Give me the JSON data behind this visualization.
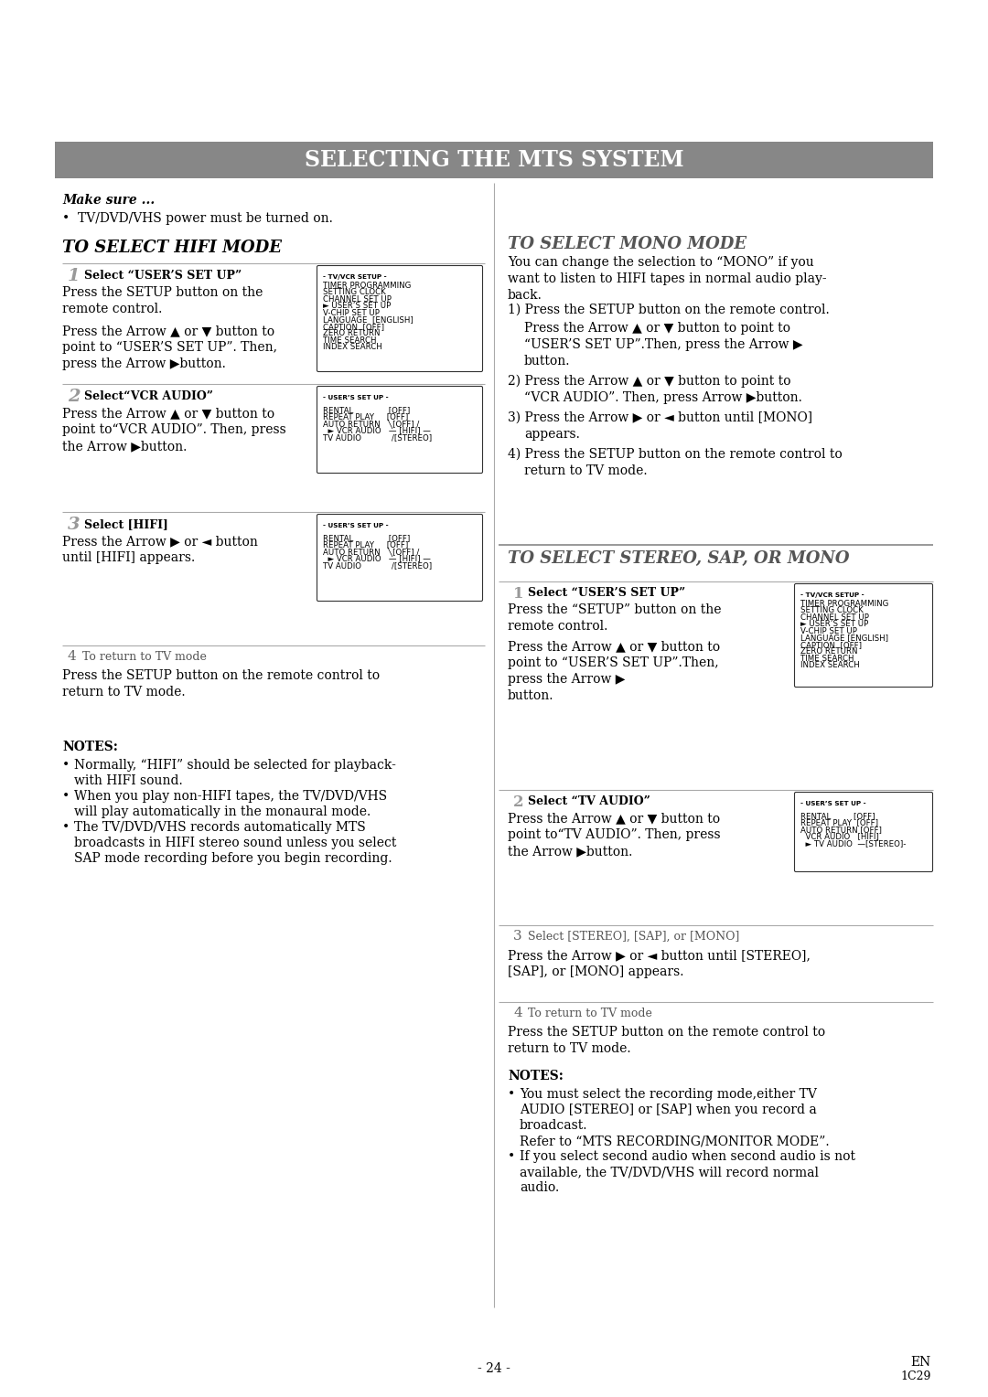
{
  "title": "SELECTING THE MTS SYSTEM",
  "title_bg": "#878787",
  "title_color": "#ffffff",
  "page_bg": "#ffffff",
  "footer_left": "- 24 -",
  "footer_right_top": "EN",
  "footer_right_bot": "1C29"
}
